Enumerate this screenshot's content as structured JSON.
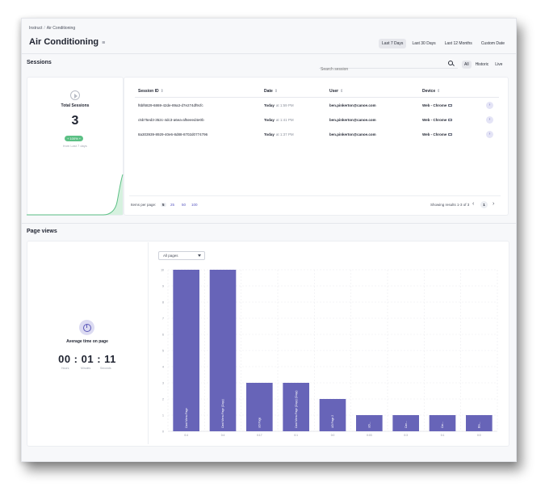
{
  "breadcrumb": {
    "root": "Instruct",
    "current": "Air Conditioning"
  },
  "page_title": "Air Conditioning",
  "date_ranges": [
    "Last 7 Days",
    "Last 30 Days",
    "Last 12 Months",
    "Custom Date"
  ],
  "date_range_active": 0,
  "sessions": {
    "title": "Sessions",
    "search_placeholder": "Search session",
    "filters": [
      "All",
      "Historic",
      "Live"
    ],
    "filter_active": 0,
    "summary": {
      "label": "Total Sessions",
      "value": "3",
      "trend": "+ 100% +",
      "trend_sub": "from Last 7 days"
    },
    "columns": [
      {
        "label": "Session ID"
      },
      {
        "label": "Date"
      },
      {
        "label": "User"
      },
      {
        "label": "Device"
      }
    ],
    "rows": [
      {
        "id": "f6bf6829-6869-42de-89a3-d7e274df9cfc",
        "date": "Today",
        "time": "at 1:59 PM",
        "user": "ben.pinkerton@canoe.com",
        "device": "Web - Chrome"
      },
      {
        "id": "c5b75ed3-352c-4dc3-a6ea-af5eeed4e0b",
        "date": "Today",
        "time": "at 1:41 PM",
        "user": "ben.pinkerton@canoe.com",
        "device": "Web - Chrome"
      },
      {
        "id": "8a303939-8929-40e6-8d88-8702d0774796",
        "date": "Today",
        "time": "at 1:37 PM",
        "user": "ben.pinkerton@canoe.com",
        "device": "Web - Chrome"
      }
    ],
    "pager": {
      "items_label": "Items per page:",
      "sizes": [
        "5",
        "25",
        "50",
        "100"
      ],
      "size_active": 0,
      "results": "Showing results 1-3 of 3",
      "page": "1",
      "prev": "‹",
      "next": "›"
    },
    "sparkline_color": "#5cc085"
  },
  "page_views": {
    "title": "Page views",
    "select_value": "All pages",
    "avg_label": "Average time on page",
    "avg_time": "00 : 01 : 11",
    "units": [
      "Hours",
      "Minutes",
      "Seconds"
    ]
  },
  "chart_data": {
    "type": "bar",
    "bar_color": "#6764b8",
    "ylim": [
      0,
      10
    ],
    "yticks": [
      "0",
      "1",
      "2",
      "3",
      "4",
      "5",
      "6",
      "7",
      "8",
      "9",
      "10"
    ],
    "categories": [
      "Card Menu Page",
      "Card Menu Page (Copy)",
      "UD Page",
      "Card Menu Page (Copy) (Copy)",
      "UD Page 2",
      "UD...",
      "Can...",
      "Car...",
      "Blo..."
    ],
    "values": [
      10,
      10,
      3,
      3,
      2,
      1,
      1,
      1,
      1
    ],
    "xlabels": [
      "0:4",
      "0:4",
      "0:17",
      "0:1",
      "0:0",
      "0:03",
      "0:3",
      "0:1",
      "0:0"
    ]
  }
}
